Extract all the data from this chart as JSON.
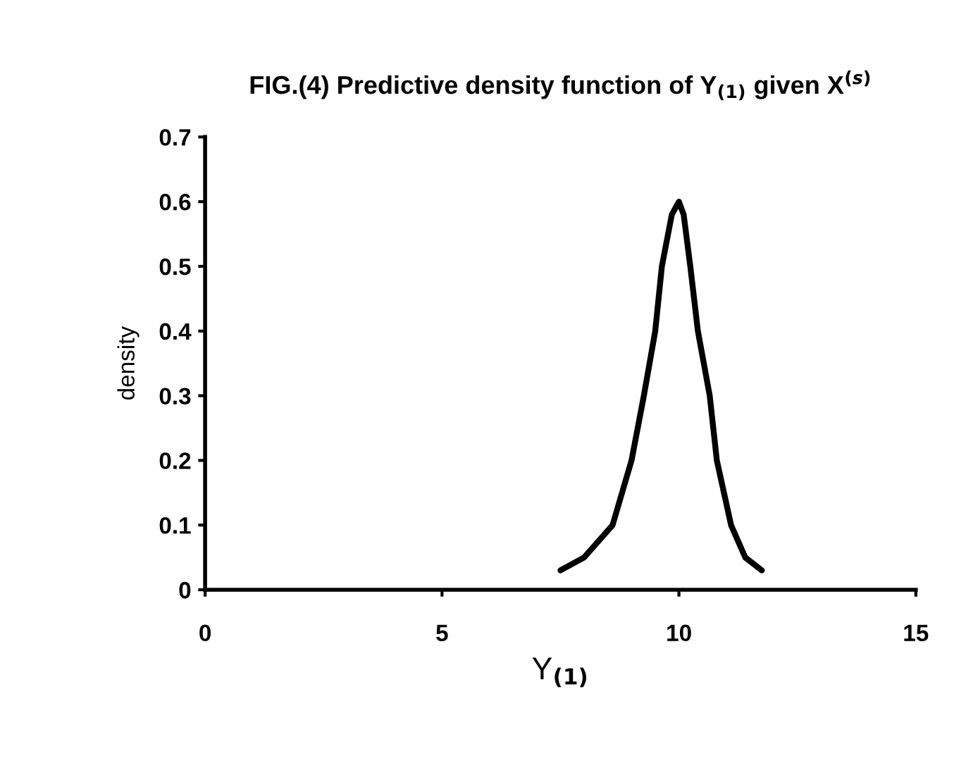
{
  "chart_data": {
    "type": "line",
    "title": "FIG.(4) Predictive density function of Y$_{(1)}$ given X$^{(s)}$",
    "xlabel": "Y$_{(1)}$",
    "ylabel": "density",
    "x": [
      7.5,
      8.0,
      8.6,
      9.0,
      9.26,
      9.5,
      9.64,
      9.85,
      10.0,
      10.1,
      10.24,
      10.4,
      10.65,
      10.8,
      11.1,
      11.4,
      11.75
    ],
    "series": [
      {
        "color": "#000000",
        "values": [
          0.03,
          0.05,
          0.1,
          0.2,
          0.3,
          0.4,
          0.5,
          0.58,
          0.6,
          0.58,
          0.5,
          0.4,
          0.3,
          0.2,
          0.1,
          0.05,
          0.03
        ]
      }
    ],
    "xlim": [
      0,
      15
    ],
    "xticks": [
      0,
      5,
      10,
      15
    ],
    "ylim": [
      0,
      0.7
    ],
    "yticks": [
      0,
      0.1,
      0.2,
      0.3,
      0.4,
      0.5,
      0.6,
      0.7
    ],
    "grid": false,
    "legend": false,
    "marker": "none",
    "line_style": "solid"
  }
}
